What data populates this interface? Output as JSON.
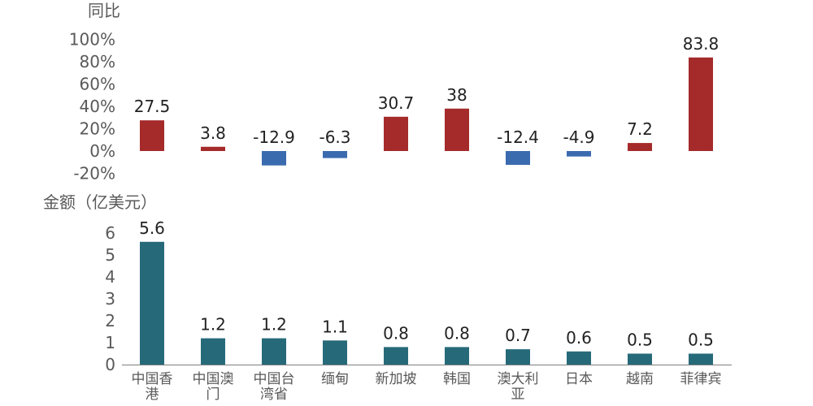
{
  "chart_data": [
    {
      "type": "bar",
      "ylabel": "同比",
      "yticks": [
        "100%",
        "80%",
        "60%",
        "40%",
        "20%",
        "0%",
        "-20%"
      ],
      "ylim": [
        -20,
        100
      ],
      "categories": [
        "中国香港",
        "中国澳门",
        "中国台湾省",
        "缅甸",
        "新加坡",
        "韩国",
        "澳大利亚",
        "日本",
        "越南",
        "菲律宾"
      ],
      "values": [
        27.5,
        3.8,
        -12.9,
        -6.3,
        30.7,
        38,
        -12.4,
        -4.9,
        7.2,
        83.8
      ],
      "data_labels": [
        "27.5",
        "3.8",
        "-12.9",
        "-6.3",
        "30.7",
        "38",
        "-12.4",
        "-4.9",
        "7.2",
        "83.8"
      ],
      "colors": {
        "positive": "#A52A2A",
        "negative": "#3B6BAF"
      }
    },
    {
      "type": "bar",
      "ylabel": "金额（亿美元）",
      "yticks": [
        "6",
        "5",
        "4",
        "3",
        "2",
        "1",
        "0"
      ],
      "ylim": [
        0,
        6
      ],
      "categories": [
        "中国香港",
        "中国澳门",
        "中国台湾省",
        "缅甸",
        "新加坡",
        "韩国",
        "澳大利亚",
        "日本",
        "越南",
        "菲律宾"
      ],
      "category_lines": [
        [
          "中国香",
          "港"
        ],
        [
          "中国澳",
          "门"
        ],
        [
          "中国台",
          "湾省"
        ],
        [
          "缅甸"
        ],
        [
          "新加坡"
        ],
        [
          "韩国"
        ],
        [
          "澳大利",
          "亚"
        ],
        [
          "日本"
        ],
        [
          "越南"
        ],
        [
          "菲律宾"
        ]
      ],
      "values": [
        5.6,
        1.2,
        1.2,
        1.1,
        0.8,
        0.8,
        0.7,
        0.6,
        0.5,
        0.5
      ],
      "data_labels": [
        "5.6",
        "1.2",
        "1.2",
        "1.1",
        "0.8",
        "0.8",
        "0.7",
        "0.6",
        "0.5",
        "0.5"
      ],
      "colors": {
        "bar": "#266A7A",
        "axis": "#7F7F7F"
      }
    }
  ]
}
